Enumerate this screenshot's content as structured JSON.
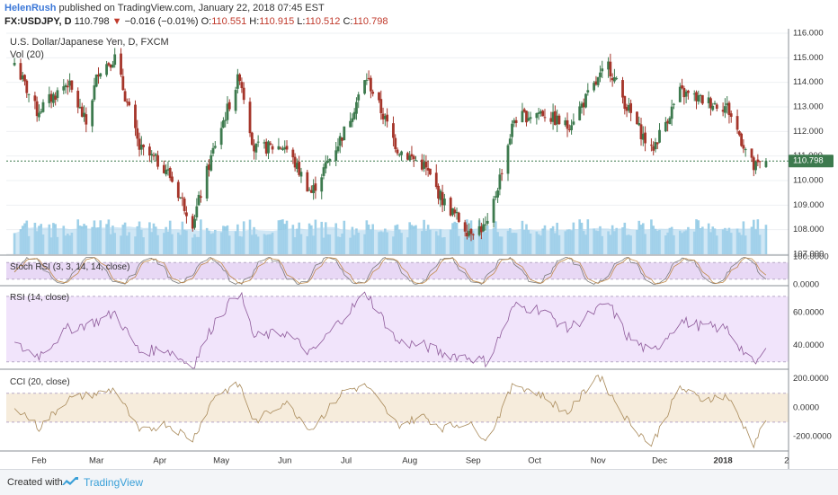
{
  "header": {
    "author": "HelenRush",
    "published": "published on TradingView.com, January 22, 2018 07:45 EST",
    "symbol": "FX:USDJPY, D",
    "last": "110.798",
    "change": "−0.016 (−0.01%)",
    "open_label": "O:",
    "open": "110.551",
    "high_label": "H:",
    "high": "110.915",
    "low_label": "L:",
    "low": "110.512",
    "close_label": "C:",
    "close": "110.798"
  },
  "colors": {
    "up": "#3d7a4e",
    "down": "#a5352a",
    "volume": "#7ec0e0",
    "volume_ma": "#a9d4ec",
    "stoch_band": "#e8d8f5",
    "rsi_band": "#f1e4fb",
    "cci_band": "#f6ecdc"
  },
  "footer": {
    "created": "Created with",
    "brand": "TradingView"
  },
  "chart_data": [
    {
      "type": "candlestick",
      "title": "U.S. Dollar/Japanese Yen, D, FXCM",
      "ylim": [
        107.0,
        116.0
      ],
      "yticks": [
        "116.000",
        "115.000",
        "114.000",
        "113.000",
        "112.000",
        "111.000",
        "110.000",
        "109.000",
        "108.000",
        "107.000"
      ],
      "xticks": [
        "Feb",
        "Mar",
        "Apr",
        "May",
        "Jun",
        "Jul",
        "Aug",
        "Sep",
        "Oct",
        "Nov",
        "Dec",
        "2018",
        "2"
      ],
      "last_price_label": "110.798",
      "anchors": [
        [
          "2017-01-20",
          114.8
        ],
        [
          "2017-01-31",
          112.8
        ],
        [
          "2017-02-15",
          114.0
        ],
        [
          "2017-02-24",
          112.3
        ],
        [
          "2017-03-02",
          114.5
        ],
        [
          "2017-03-10",
          115.0
        ],
        [
          "2017-03-22",
          111.3
        ],
        [
          "2017-04-04",
          110.5
        ],
        [
          "2017-04-17",
          108.3
        ],
        [
          "2017-04-28",
          111.5
        ],
        [
          "2017-05-10",
          114.3
        ],
        [
          "2017-05-17",
          111.3
        ],
        [
          "2017-06-01",
          111.4
        ],
        [
          "2017-06-14",
          109.5
        ],
        [
          "2017-06-30",
          112.0
        ],
        [
          "2017-07-11",
          114.2
        ],
        [
          "2017-07-26",
          111.3
        ],
        [
          "2017-08-08",
          110.6
        ],
        [
          "2017-08-17",
          109.2
        ],
        [
          "2017-08-29",
          108.0
        ],
        [
          "2017-09-08",
          108.1
        ],
        [
          "2017-09-21",
          112.5
        ],
        [
          "2017-10-04",
          112.8
        ],
        [
          "2017-10-17",
          112.2
        ],
        [
          "2017-11-06",
          114.7
        ],
        [
          "2017-11-15",
          113.0
        ],
        [
          "2017-11-27",
          111.2
        ],
        [
          "2017-12-11",
          113.6
        ],
        [
          "2017-12-21",
          113.3
        ],
        [
          "2018-01-03",
          113.0
        ],
        [
          "2018-01-16",
          110.5
        ],
        [
          "2018-01-22",
          110.8
        ]
      ]
    },
    {
      "type": "bar",
      "title": "Vol (20)",
      "series_note": "daily volume with 20-period moving average area",
      "ylim": [
        0,
        100
      ]
    },
    {
      "type": "line",
      "title": "Stoch RSI (3, 3, 14, 14, close)",
      "ylim": [
        0,
        100
      ],
      "yticks": [
        "100.0000",
        "0.0000"
      ],
      "bands": [
        20,
        80
      ]
    },
    {
      "type": "line",
      "title": "RSI (14, close)",
      "ylim": [
        26,
        76
      ],
      "yticks": [
        "60.0000",
        "40.0000"
      ],
      "bands": [
        30,
        70
      ],
      "anchors": [
        [
          "2017-01-20",
          40
        ],
        [
          "2017-02-01",
          34
        ],
        [
          "2017-02-15",
          50
        ],
        [
          "2017-03-02",
          55
        ],
        [
          "2017-03-10",
          60
        ],
        [
          "2017-03-22",
          36
        ],
        [
          "2017-04-04",
          38
        ],
        [
          "2017-04-17",
          27
        ],
        [
          "2017-04-28",
          55
        ],
        [
          "2017-05-10",
          73
        ],
        [
          "2017-05-17",
          45
        ],
        [
          "2017-06-01",
          48
        ],
        [
          "2017-06-14",
          35
        ],
        [
          "2017-06-30",
          58
        ],
        [
          "2017-07-11",
          72
        ],
        [
          "2017-07-26",
          42
        ],
        [
          "2017-08-08",
          40
        ],
        [
          "2017-08-17",
          35
        ],
        [
          "2017-08-29",
          33
        ],
        [
          "2017-09-08",
          30
        ],
        [
          "2017-09-21",
          64
        ],
        [
          "2017-10-04",
          62
        ],
        [
          "2017-10-17",
          50
        ],
        [
          "2017-11-06",
          66
        ],
        [
          "2017-11-15",
          46
        ],
        [
          "2017-11-27",
          35
        ],
        [
          "2017-12-11",
          55
        ],
        [
          "2017-12-21",
          52
        ],
        [
          "2018-01-03",
          50
        ],
        [
          "2018-01-16",
          28
        ],
        [
          "2018-01-22",
          36
        ]
      ]
    },
    {
      "type": "line",
      "title": "CCI (20, close)",
      "ylim": [
        -300,
        260
      ],
      "yticks": [
        "200.0000",
        "0.0000",
        "-200.0000"
      ],
      "bands": [
        -100,
        100
      ],
      "anchors": [
        [
          "2017-01-20",
          20
        ],
        [
          "2017-02-01",
          -140
        ],
        [
          "2017-02-15",
          60
        ],
        [
          "2017-03-02",
          100
        ],
        [
          "2017-03-10",
          130
        ],
        [
          "2017-03-22",
          -170
        ],
        [
          "2017-04-04",
          -110
        ],
        [
          "2017-04-17",
          -220
        ],
        [
          "2017-04-28",
          90
        ],
        [
          "2017-05-10",
          160
        ],
        [
          "2017-05-17",
          -100
        ],
        [
          "2017-06-01",
          40
        ],
        [
          "2017-06-14",
          -150
        ],
        [
          "2017-06-30",
          120
        ],
        [
          "2017-07-11",
          150
        ],
        [
          "2017-07-26",
          -120
        ],
        [
          "2017-08-08",
          -60
        ],
        [
          "2017-08-17",
          -140
        ],
        [
          "2017-08-29",
          -100
        ],
        [
          "2017-09-08",
          -220
        ],
        [
          "2017-09-21",
          170
        ],
        [
          "2017-10-04",
          90
        ],
        [
          "2017-10-17",
          -40
        ],
        [
          "2017-11-01",
          230
        ],
        [
          "2017-11-15",
          -80
        ],
        [
          "2017-11-27",
          -260
        ],
        [
          "2017-12-11",
          140
        ],
        [
          "2017-12-21",
          60
        ],
        [
          "2018-01-03",
          80
        ],
        [
          "2018-01-16",
          -250
        ],
        [
          "2018-01-22",
          -90
        ]
      ]
    }
  ]
}
